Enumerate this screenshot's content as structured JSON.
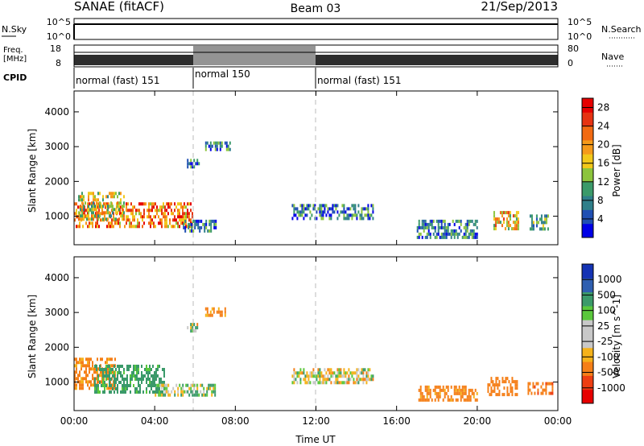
{
  "header": {
    "station": "SANAE (fitACF)",
    "beam": "Beam 03",
    "date": "21/Sep/2013"
  },
  "nsky": {
    "label": "N.Sky",
    "ticks": [
      "10^5",
      "10^0"
    ],
    "right_label": "N.Search",
    "right_ticks": [
      "10^5",
      "10^0"
    ]
  },
  "freq": {
    "label_line1": "Freq.",
    "label_line2": "[MHz]",
    "ticks": [
      "18",
      "8"
    ],
    "right_label": "Nave",
    "right_ticks": [
      "80",
      "0"
    ]
  },
  "cpid": {
    "label": "CPID",
    "segments": [
      {
        "label": "normal (fast) 151",
        "start_h": 0,
        "end_h": 6
      },
      {
        "label": "normal 150",
        "start_h": 6,
        "end_h": 12
      },
      {
        "label": "normal (fast) 151",
        "start_h": 12,
        "end_h": 24
      }
    ]
  },
  "colors": {
    "power_scale": [
      "#0000e6",
      "#1f4fb3",
      "#2f7f8a",
      "#3b9a6a",
      "#8cc43c",
      "#f2c81a",
      "#f59a1a",
      "#f26a12",
      "#e63312",
      "#e60000"
    ],
    "velocity_scale": [
      "#e60000",
      "#ee3e12",
      "#f57f18",
      "#f5b21a",
      "#c8c8c8",
      "#c8c8c8",
      "#5ac83c",
      "#3b9a6a",
      "#2f5fb0",
      "#1433b4"
    ]
  },
  "chart_data": [
    {
      "type": "heatmap",
      "title": "Power",
      "ylabel": "Slant Range [km]",
      "x_ticks": [
        "00:00",
        "04:00",
        "08:00",
        "12:00",
        "16:00",
        "20:00",
        "00:00"
      ],
      "y_ticks": [
        "1000",
        "2000",
        "3000",
        "4000"
      ],
      "xlim_hours": [
        0,
        24
      ],
      "ylim_km": [
        180,
        4600
      ],
      "colorbar": {
        "label": "Power [dB]",
        "ticks": [
          "4",
          "8",
          "12",
          "16",
          "20",
          "24",
          "28"
        ],
        "range": [
          0,
          30
        ]
      },
      "dashed_lines_hours": [
        6,
        12
      ],
      "echo_regions": [
        {
          "t0": 0.0,
          "t1": 5.9,
          "r_low": 700,
          "r_high": 1400,
          "value": 20
        },
        {
          "t0": 0.2,
          "t1": 2.5,
          "r_low": 900,
          "r_high": 1700,
          "value": 14
        },
        {
          "t0": 5.4,
          "t1": 7.0,
          "r_low": 620,
          "r_high": 900,
          "value": 6
        },
        {
          "t0": 5.6,
          "t1": 6.2,
          "r_low": 2450,
          "r_high": 2650,
          "value": 6
        },
        {
          "t0": 6.5,
          "t1": 7.7,
          "r_low": 2950,
          "r_high": 3150,
          "value": 6
        },
        {
          "t0": 10.8,
          "t1": 14.8,
          "r_low": 950,
          "r_high": 1350,
          "value": 6
        },
        {
          "t0": 17.0,
          "t1": 20.0,
          "r_low": 400,
          "r_high": 900,
          "value": 6
        },
        {
          "t0": 20.8,
          "t1": 22.0,
          "r_low": 650,
          "r_high": 1150,
          "value": 16
        },
        {
          "t0": 22.6,
          "t1": 23.5,
          "r_low": 600,
          "r_high": 1050,
          "value": 10
        }
      ]
    },
    {
      "type": "heatmap",
      "title": "Velocity",
      "ylabel": "Slant Range [km]",
      "xlabel": "Time UT",
      "x_ticks": [
        "00:00",
        "04:00",
        "08:00",
        "12:00",
        "16:00",
        "20:00",
        "00:00"
      ],
      "y_ticks": [
        "1000",
        "2000",
        "3000",
        "4000"
      ],
      "xlim_hours": [
        0,
        24
      ],
      "ylim_km": [
        180,
        4600
      ],
      "colorbar": {
        "label": "Velocity [m s^-1]",
        "ticks": [
          "1000",
          "500",
          "100",
          "25",
          "-25",
          "-100",
          "-500",
          "-1000"
        ]
      },
      "dashed_lines_hours": [
        6,
        12
      ],
      "echo_regions": [
        {
          "t0": 0.0,
          "t1": 2.0,
          "r_low": 800,
          "r_high": 1700,
          "value": -200
        },
        {
          "t0": 1.0,
          "t1": 4.5,
          "r_low": 700,
          "r_high": 1500,
          "value": 200
        },
        {
          "t0": 4.0,
          "t1": 7.0,
          "r_low": 620,
          "r_high": 950,
          "value": 60
        },
        {
          "t0": 5.6,
          "t1": 6.2,
          "r_low": 2500,
          "r_high": 2700,
          "value": 0
        },
        {
          "t0": 6.5,
          "t1": 7.5,
          "r_low": 2950,
          "r_high": 3150,
          "value": -150
        },
        {
          "t0": 10.8,
          "t1": 14.8,
          "r_low": 1000,
          "r_high": 1400,
          "value": 0
        },
        {
          "t0": 17.0,
          "t1": 20.0,
          "r_low": 450,
          "r_high": 900,
          "value": -200
        },
        {
          "t0": 20.5,
          "t1": 22.0,
          "r_low": 650,
          "r_high": 1150,
          "value": -300
        },
        {
          "t0": 22.5,
          "t1": 23.7,
          "r_low": 700,
          "r_high": 1000,
          "value": -400
        }
      ]
    }
  ]
}
